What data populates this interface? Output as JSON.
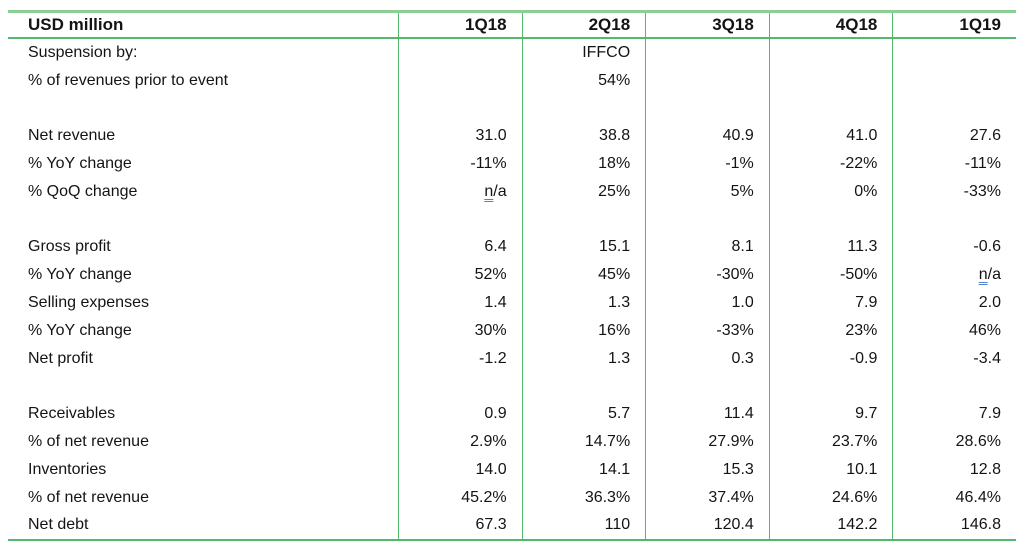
{
  "table": {
    "unit_label": "USD million",
    "columns": [
      "1Q18",
      "2Q18",
      "3Q18",
      "4Q18",
      "1Q19"
    ],
    "rows": [
      {
        "label": "Suspension by:",
        "values": [
          "",
          "IFFCO",
          "",
          "",
          ""
        ]
      },
      {
        "label": "% of revenues prior to event",
        "values": [
          "",
          "54%",
          "",
          "",
          ""
        ]
      },
      {
        "label": "",
        "values": [
          "",
          "",
          "",
          "",
          ""
        ]
      },
      {
        "label": "Net revenue",
        "values": [
          "31.0",
          "38.8",
          "40.9",
          "41.0",
          "27.6"
        ]
      },
      {
        "label": "% YoY change",
        "values": [
          "-11%",
          "18%",
          "-1%",
          "-22%",
          "-11%"
        ]
      },
      {
        "label": "% QoQ change",
        "values": [
          "n/a",
          "25%",
          "5%",
          "0%",
          "-33%"
        ]
      },
      {
        "label": "",
        "values": [
          "",
          "",
          "",
          "",
          ""
        ]
      },
      {
        "label": "Gross profit",
        "values": [
          "6.4",
          "15.1",
          "8.1",
          "11.3",
          "-0.6"
        ]
      },
      {
        "label": "% YoY change",
        "values": [
          "52%",
          "45%",
          "-30%",
          "-50%",
          "n/a"
        ]
      },
      {
        "label": "Selling expenses",
        "values": [
          "1.4",
          "1.3",
          "1.0",
          "7.9",
          "2.0"
        ]
      },
      {
        "label": "% YoY change",
        "values": [
          "30%",
          "16%",
          "-33%",
          "23%",
          "46%"
        ]
      },
      {
        "label": "Net profit",
        "values": [
          "-1.2",
          "1.3",
          "0.3",
          "-0.9",
          "-3.4"
        ]
      },
      {
        "label": "",
        "values": [
          "",
          "",
          "",
          "",
          ""
        ]
      },
      {
        "label": "Receivables",
        "values": [
          "0.9",
          "5.7",
          "11.4",
          "9.7",
          "7.9"
        ]
      },
      {
        "label": "% of net revenue",
        "values": [
          "2.9%",
          "14.7%",
          "27.9%",
          "23.7%",
          "28.6%"
        ]
      },
      {
        "label": "Inventories",
        "values": [
          "14.0",
          "14.1",
          "15.3",
          "10.1",
          "12.8"
        ]
      },
      {
        "label": "% of net revenue",
        "values": [
          "45.2%",
          "36.3%",
          "37.4%",
          "24.6%",
          "46.4%"
        ]
      },
      {
        "label": "Net debt",
        "values": [
          "67.3",
          "110",
          "120.4",
          "142.2",
          "146.8"
        ]
      }
    ],
    "na_text": "n/a"
  },
  "colors": {
    "border_green": "#53b86a",
    "top_border_green": "#8ccf96",
    "text": "#141414",
    "na_underline_blue": "#4f82c8"
  }
}
